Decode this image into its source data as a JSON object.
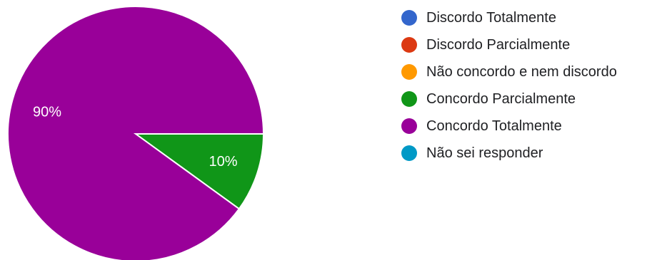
{
  "chart_data": {
    "type": "pie",
    "categories": [
      "Discordo Totalmente",
      "Discordo Parcialmente",
      "Não concordo e nem discordo",
      "Concordo Parcialmente",
      "Concordo Totalmente",
      "Não sei responder"
    ],
    "values": [
      0,
      0,
      0,
      10,
      90,
      0
    ],
    "data_labels": [
      "",
      "",
      "",
      "10%",
      "90%",
      ""
    ],
    "colors": [
      "#3366cc",
      "#dc3912",
      "#ff9900",
      "#109618",
      "#990099",
      "#0099c6"
    ],
    "legend_position": "right",
    "start_angle_deg": 90,
    "direction": "clockwise"
  }
}
